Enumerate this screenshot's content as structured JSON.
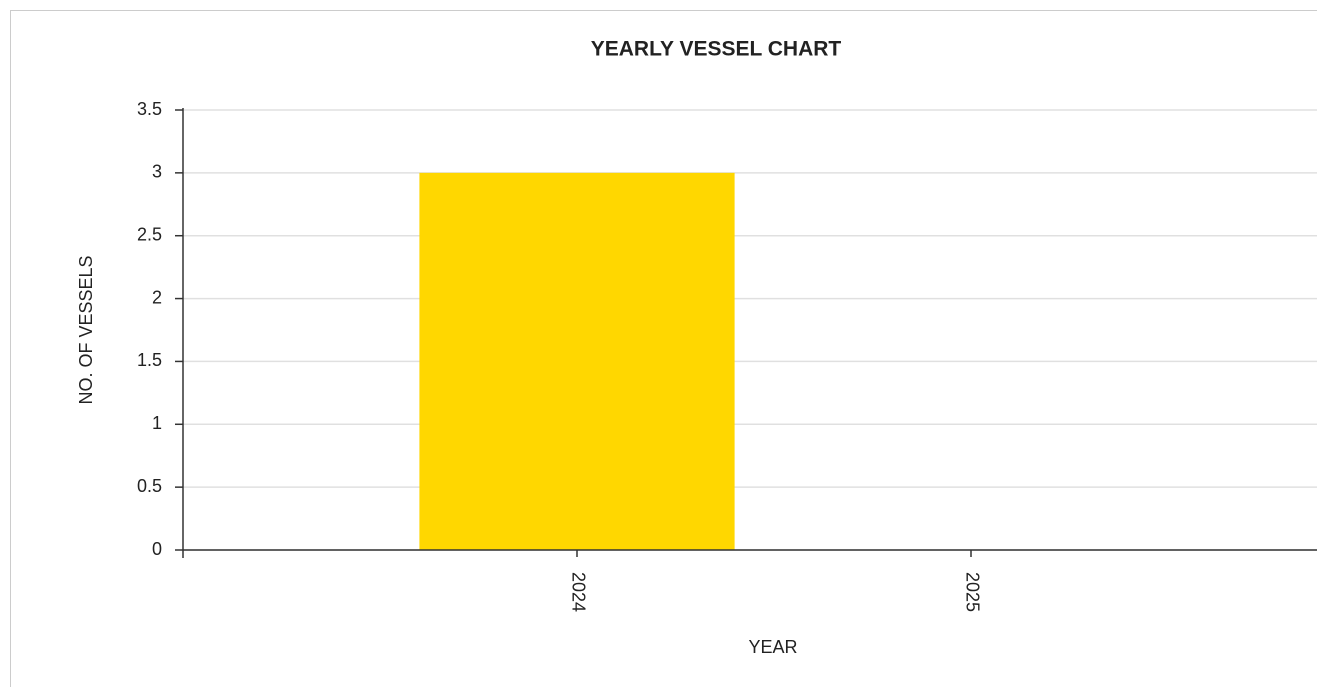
{
  "chart_data": {
    "type": "bar",
    "title": "YEARLY VESSEL CHART",
    "x_label": "YEAR",
    "y_label": "NO. OF VESSELS",
    "categories": [
      "2024",
      "2025"
    ],
    "values": [
      3,
      0
    ],
    "color": "#ffd700",
    "ylim": [
      0,
      3.5
    ],
    "yticks": [
      0,
      0.5,
      1,
      1.5,
      2,
      2.5,
      3,
      3.5
    ],
    "grid": true
  }
}
